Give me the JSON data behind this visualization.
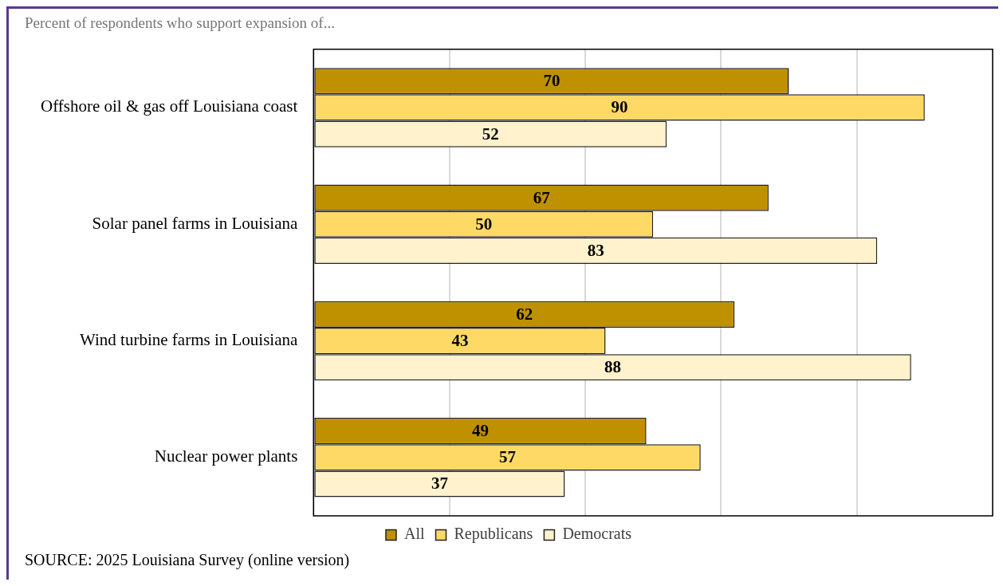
{
  "chart_data": {
    "type": "bar",
    "orientation": "horizontal",
    "title": "Percent of respondents who support expansion of...",
    "categories": [
      "Offshore oil & gas off Louisiana coast",
      "Solar panel farms in Louisiana",
      "Wind turbine farms in Louisiana",
      "Nuclear power plants"
    ],
    "series": [
      {
        "name": "All",
        "color": "#bf9000",
        "values": [
          70,
          67,
          62,
          49
        ]
      },
      {
        "name": "Republicans",
        "color": "#ffd966",
        "values": [
          90,
          50,
          43,
          57
        ]
      },
      {
        "name": "Democrats",
        "color": "#fff2cc",
        "values": [
          52,
          83,
          88,
          37
        ]
      }
    ],
    "xlim": [
      0,
      100
    ],
    "xticks": [
      {
        "value": 0,
        "label": null
      },
      {
        "value": 20,
        "label": null
      },
      {
        "value": 40,
        "label": null
      },
      {
        "value": 60,
        "label": null
      },
      {
        "value": 80,
        "label": null
      },
      {
        "value": 100,
        "label": null
      }
    ],
    "tick_labels": "y",
    "grid": "x",
    "legend": "bottom",
    "data_labels": true,
    "annotations": [
      "SOURCE: 2025 Louisiana Survey (online version)"
    ]
  }
}
